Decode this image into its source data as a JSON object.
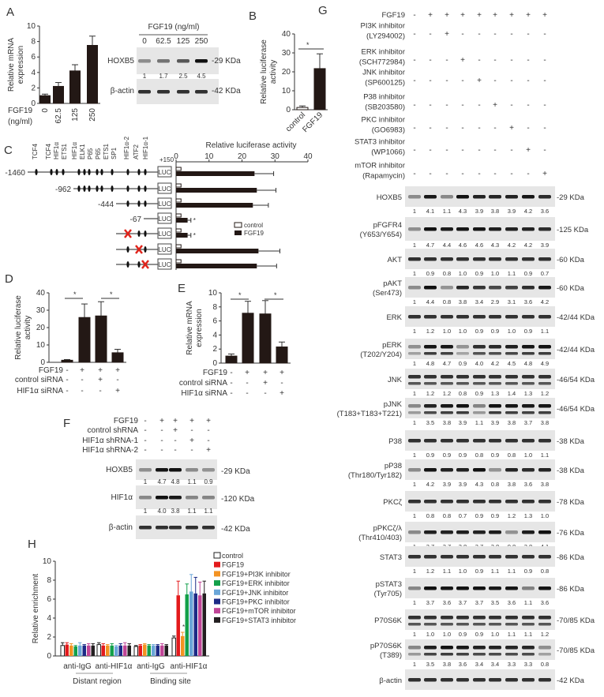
{
  "panel_labels": {
    "A": "A",
    "B": "B",
    "C": "C",
    "D": "D",
    "E": "E",
    "F": "F",
    "G": "G",
    "H": "H"
  },
  "colors": {
    "bar": "#231815",
    "mutation": "#e0241b",
    "control_fill": "#ffffff"
  },
  "chart_data": [
    {
      "id": "A",
      "type": "bar",
      "categories": [
        "0",
        "62.5",
        "125",
        "250"
      ],
      "values": [
        1.0,
        2.2,
        4.2,
        7.5
      ],
      "errors": [
        0.2,
        0.5,
        0.8,
        1.2
      ],
      "ylabel_lines": [
        "Relative mRNA",
        "expression"
      ],
      "ylim": [
        0,
        10
      ],
      "yticks": [
        0,
        2,
        4,
        6,
        8,
        10
      ],
      "xlabel_lines": [
        "FGF19",
        "(ng/ml)"
      ],
      "grid": false
    },
    {
      "id": "B",
      "type": "bar",
      "categories": [
        "control",
        "FGF19"
      ],
      "values": [
        1.2,
        21.7
      ],
      "errors": [
        0.8,
        7.8
      ],
      "ylabel_lines": [
        "Relative luciferase",
        "activity"
      ],
      "ylim": [
        0,
        40
      ],
      "yticks": [
        0,
        10,
        20,
        30,
        40
      ],
      "significance": "*",
      "grid": false
    },
    {
      "id": "C",
      "type": "bar",
      "orientation": "horizontal",
      "title": "Relative luciferase activity",
      "xlim": [
        0,
        40
      ],
      "xticks": [
        0,
        10,
        20,
        30,
        40
      ],
      "constructs": [
        "-1460",
        "-962",
        "-444",
        "-67",
        "",
        "",
        ""
      ],
      "promoter_end": "+150",
      "reporter": "LUC",
      "sites": [
        "TCF4",
        "TCF4",
        "HIF1α",
        "ETS1",
        "HIF1α",
        "ELK1",
        "P65",
        "P65",
        "ETS1",
        "SP1",
        "HIF1α-2",
        "ATF2",
        "HIF1α-1"
      ],
      "series": [
        {
          "name": "control",
          "values": [
            1.5,
            1.5,
            1.5,
            1.5,
            1.5,
            1.5,
            1.5
          ],
          "errors": [
            0.3,
            0.3,
            0.3,
            0.3,
            0.3,
            0.3,
            0.3
          ]
        },
        {
          "name": "FGF19",
          "values": [
            23.8,
            24.5,
            23.3,
            3.5,
            3.5,
            25.0,
            24.5
          ],
          "errors": [
            5.8,
            5.8,
            4.7,
            1.0,
            1.0,
            6.5,
            6.0
          ]
        }
      ],
      "annotations": [
        "",
        "",
        "",
        "*",
        "*",
        "",
        ""
      ],
      "legend": "center-right",
      "grid": false
    },
    {
      "id": "D",
      "type": "bar",
      "values": [
        1.2,
        25.8,
        26.7,
        5.5
      ],
      "errors": [
        0.4,
        7.8,
        8.2,
        2.0
      ],
      "ylabel_lines": [
        "Relative luciferase",
        "activity"
      ],
      "ylim": [
        0,
        40
      ],
      "yticks": [
        0,
        10,
        20,
        30,
        40
      ],
      "significance": [
        "*",
        "*"
      ],
      "conditions": [
        {
          "label": "FGF19",
          "signs": [
            "-",
            "+",
            "+",
            "+"
          ]
        },
        {
          "label": "control siRNA",
          "signs": [
            "-",
            "-",
            "+",
            "-"
          ]
        },
        {
          "label": "HIF1α siRNA",
          "signs": [
            "-",
            "-",
            "-",
            "+"
          ]
        }
      ]
    },
    {
      "id": "E",
      "type": "bar",
      "values": [
        1.0,
        7.1,
        7.0,
        2.3
      ],
      "errors": [
        0.3,
        1.7,
        1.9,
        0.7
      ],
      "ylabel_lines": [
        "Relative mRNA",
        "expression"
      ],
      "ylim": [
        0,
        10
      ],
      "yticks": [
        0,
        2,
        4,
        6,
        8,
        10
      ],
      "significance": [
        "*",
        "*"
      ],
      "conditions": [
        {
          "label": "FGF19",
          "signs": [
            "-",
            "+",
            "+",
            "+"
          ]
        },
        {
          "label": "control siRNA",
          "signs": [
            "-",
            "-",
            "+",
            "-"
          ]
        },
        {
          "label": "HIF1α siRNA",
          "signs": [
            "-",
            "-",
            "-",
            "+"
          ]
        }
      ]
    },
    {
      "id": "H",
      "type": "bar",
      "categories": [
        "anti-IgG",
        "anti-HIF1α",
        "anti-IgG",
        "anti-HIF1α"
      ],
      "group_labels": [
        "Distant region",
        "Binding site"
      ],
      "ylabel": "Relative enrichment",
      "ylim": [
        0,
        10
      ],
      "yticks": [
        0,
        2,
        4,
        6,
        8,
        10
      ],
      "legend": "right",
      "significance": "*",
      "series": [
        {
          "name": "control",
          "color": "#ffffff",
          "values": [
            1.1,
            1.2,
            1.0,
            1.9
          ],
          "errors": [
            0.3,
            0.2,
            0.1,
            0.2
          ]
        },
        {
          "name": "FGF19",
          "color": "#e31a1c",
          "values": [
            1.2,
            1.1,
            1.1,
            6.4
          ],
          "errors": [
            0.2,
            0.2,
            0.1,
            1.5
          ]
        },
        {
          "name": "FGF19+PI3K inhibitor",
          "color": "#f39322",
          "values": [
            1.1,
            1.1,
            1.2,
            2.1
          ],
          "errors": [
            0.2,
            0.1,
            0.1,
            0.4
          ]
        },
        {
          "name": "FGF19+ERK inhibitor",
          "color": "#13a04a",
          "values": [
            1.0,
            1.1,
            1.1,
            6.5
          ],
          "errors": [
            0.1,
            0.2,
            0.1,
            1.1
          ]
        },
        {
          "name": "FGF19+JNK inhibitor",
          "color": "#6aa6d8",
          "values": [
            1.1,
            1.0,
            1.1,
            6.8
          ],
          "errors": [
            0.3,
            0.1,
            0.1,
            1.8
          ]
        },
        {
          "name": "FGF19+PKC inhibitor",
          "color": "#1c2a86",
          "values": [
            1.1,
            1.1,
            1.1,
            6.6
          ],
          "errors": [
            0.1,
            0.2,
            0.1,
            1.7
          ]
        },
        {
          "name": "FGF19+mTOR inhibitor",
          "color": "#c04597",
          "values": [
            1.1,
            1.1,
            1.1,
            6.4
          ],
          "errors": [
            0.2,
            0.3,
            0.2,
            1.4
          ]
        },
        {
          "name": "FGF19+STAT3 inhibitor",
          "color": "#231f20",
          "values": [
            1.1,
            1.1,
            1.1,
            6.6
          ],
          "errors": [
            0.2,
            0.2,
            0.1,
            1.3
          ]
        }
      ]
    }
  ],
  "blot_A": {
    "header": "FGF19 (ng/ml)",
    "doses": [
      "0",
      "62.5",
      "125",
      "250"
    ],
    "rows": [
      {
        "label": "HOXB5",
        "kda": "-29 KDa",
        "values": [
          "1",
          "1.7",
          "2.5",
          "4.5"
        ]
      },
      {
        "label": "β-actin",
        "kda": "-42 KDa"
      }
    ]
  },
  "blot_F": {
    "conditions": [
      {
        "label": "FGF19",
        "signs": [
          "-",
          "+",
          "+",
          "+",
          "+"
        ]
      },
      {
        "label": "control shRNA",
        "signs": [
          "-",
          "-",
          "+",
          "-",
          "-"
        ]
      },
      {
        "label": "HIF1α shRNA-1",
        "signs": [
          "-",
          "-",
          "-",
          "+",
          "-"
        ]
      },
      {
        "label": "HIF1α shRNA-2",
        "signs": [
          "-",
          "-",
          "-",
          "-",
          "+"
        ]
      }
    ],
    "rows": [
      {
        "label": "HOXB5",
        "kda": "-29 KDa",
        "values": [
          "1",
          "4.7",
          "4.8",
          "1.1",
          "0.9"
        ]
      },
      {
        "label": "HIF1α",
        "kda": "-120 KDa",
        "values": [
          "1",
          "4.0",
          "3.8",
          "1.1",
          "1.1"
        ]
      },
      {
        "label": "β-actin",
        "kda": "-42 KDa"
      }
    ]
  },
  "blot_G": {
    "conditions": [
      {
        "label": [
          "FGF19"
        ],
        "signs": [
          "-",
          "+",
          "+",
          "+",
          "+",
          "+",
          "+",
          "+",
          "+"
        ]
      },
      {
        "label": [
          "PI3K inhibitor",
          "(LY294002)"
        ],
        "signs": [
          "-",
          "-",
          "+",
          "-",
          "-",
          "-",
          "-",
          "-",
          "-"
        ]
      },
      {
        "label": [
          "ERK inhibitor",
          "(SCH772984)"
        ],
        "signs": [
          "-",
          "-",
          "-",
          "+",
          "-",
          "-",
          "-",
          "-",
          "-"
        ]
      },
      {
        "label": [
          "JNK inhibitor",
          "(SP600125)"
        ],
        "signs": [
          "-",
          "-",
          "-",
          "-",
          "+",
          "-",
          "-",
          "-",
          "-"
        ]
      },
      {
        "label": [
          "P38 inhibitor",
          "(SB203580)"
        ],
        "signs": [
          "-",
          "-",
          "-",
          "-",
          "-",
          "+",
          "-",
          "-",
          "-"
        ]
      },
      {
        "label": [
          "PKC inhibitor",
          "(GO6983)"
        ],
        "signs": [
          "-",
          "-",
          "-",
          "-",
          "-",
          "-",
          "+",
          "-",
          "-"
        ]
      },
      {
        "label": [
          "STAT3 inhibitor",
          "(WP1066)"
        ],
        "signs": [
          "-",
          "-",
          "-",
          "-",
          "-",
          "-",
          "-",
          "+",
          "-"
        ]
      },
      {
        "label": [
          "mTOR inhibitor",
          "(Rapamycin)"
        ],
        "signs": [
          "-",
          "-",
          "-",
          "-",
          "-",
          "-",
          "-",
          "-",
          "+"
        ]
      }
    ],
    "rows": [
      {
        "label": [
          "HOXB5"
        ],
        "kda": "-29 KDa",
        "values": [
          "1",
          "4.1",
          "1.1",
          "4.3",
          "3.9",
          "3.8",
          "3.9",
          "4.2",
          "3.6"
        ]
      },
      {
        "label": [
          "pFGFR4",
          "(Y653/Y654)"
        ],
        "kda": "-125 KDa",
        "values": [
          "1",
          "4.7",
          "4.4",
          "4.6",
          "4.6",
          "4.3",
          "4.2",
          "4.2",
          "3.9"
        ]
      },
      {
        "label": [
          "AKT"
        ],
        "kda": "-60 KDa",
        "values": [
          "1",
          "0.9",
          "0.8",
          "1.0",
          "0.9",
          "1.0",
          "1.1",
          "0.9",
          "0.7"
        ]
      },
      {
        "label": [
          "pAKT",
          "(Ser473)"
        ],
        "kda": "-60 KDa",
        "values": [
          "1",
          "4.4",
          "0.8",
          "3.8",
          "3.4",
          "2.9",
          "3.1",
          "3.6",
          "4.2"
        ]
      },
      {
        "label": [
          "ERK"
        ],
        "kda": "-42/44 KDa",
        "values": [
          "1",
          "1.2",
          "1.0",
          "1.0",
          "0.9",
          "0.9",
          "1.0",
          "0.9",
          "1.1"
        ]
      },
      {
        "label": [
          "pERK",
          "(T202/Y204)"
        ],
        "kda": "-42/44 KDa",
        "values": [
          "1",
          "4.8",
          "4.7",
          "0.9",
          "4.0",
          "4.2",
          "4.5",
          "4.8",
          "4.9"
        ]
      },
      {
        "label": [
          "JNK"
        ],
        "kda": "-46/54 KDa",
        "values": [
          "1",
          "1.2",
          "1.2",
          "0.8",
          "0.9",
          "1.3",
          "1.4",
          "1.3",
          "1.2"
        ]
      },
      {
        "label": [
          "pJNK",
          "(T183+T183+T221)"
        ],
        "kda": "-46/54 KDa",
        "values": [
          "1",
          "3.5",
          "3.8",
          "3.9",
          "1.1",
          "3.9",
          "3.8",
          "3.7",
          "3.8"
        ]
      },
      {
        "label": [
          "P38"
        ],
        "kda": "-38 KDa",
        "values": [
          "1",
          "0.9",
          "0.9",
          "0.9",
          "0.8",
          "0.9",
          "0.8",
          "1.0",
          "1.1"
        ]
      },
      {
        "label": [
          "pP38",
          "(Thr180/Tyr182)"
        ],
        "kda": "-38 KDa",
        "values": [
          "1",
          "4.2",
          "3.9",
          "3.9",
          "4.3",
          "0.8",
          "3.8",
          "3.6",
          "3.8"
        ]
      },
      {
        "label": [
          "PKCζ"
        ],
        "kda": "-78 KDa",
        "values": [
          "1",
          "0.8",
          "0.8",
          "0.7",
          "0.9",
          "0.9",
          "1.2",
          "1.3",
          "1.0"
        ]
      },
      {
        "label": [
          "pPKCζ/λ",
          "(Thr410/403)"
        ],
        "kda": "-76 KDa",
        "values": [
          "1",
          "3.7",
          "3.7",
          "3.8",
          "3.7",
          "3.8",
          "0.8",
          "3.8",
          "4.1"
        ]
      },
      {
        "label": [
          "STAT3"
        ],
        "kda": "-86 KDa",
        "values": [
          "1",
          "1.2",
          "1.1",
          "1.0",
          "0.9",
          "1.1",
          "1.1",
          "0.9",
          "0.8"
        ]
      },
      {
        "label": [
          "pSTAT3",
          "(Tyr705)"
        ],
        "kda": "-86 KDa",
        "values": [
          "1",
          "3.7",
          "3.6",
          "3.7",
          "3.7",
          "3.5",
          "3.6",
          "1.1",
          "3.6"
        ]
      },
      {
        "label": [
          "P70S6K"
        ],
        "kda": "-70/85 KDa",
        "values": [
          "1",
          "1.0",
          "1.0",
          "0.9",
          "0.9",
          "1.0",
          "1.1",
          "1.1",
          "1.2"
        ]
      },
      {
        "label": [
          "pP70S6K",
          "(T389)"
        ],
        "kda": "-70/85 KDa",
        "values": [
          "1",
          "3.5",
          "3.8",
          "3.6",
          "3.4",
          "3.4",
          "3.3",
          "3.3",
          "0.8"
        ]
      },
      {
        "label": [
          "β-actin"
        ],
        "kda": "-42 KDa"
      }
    ]
  }
}
